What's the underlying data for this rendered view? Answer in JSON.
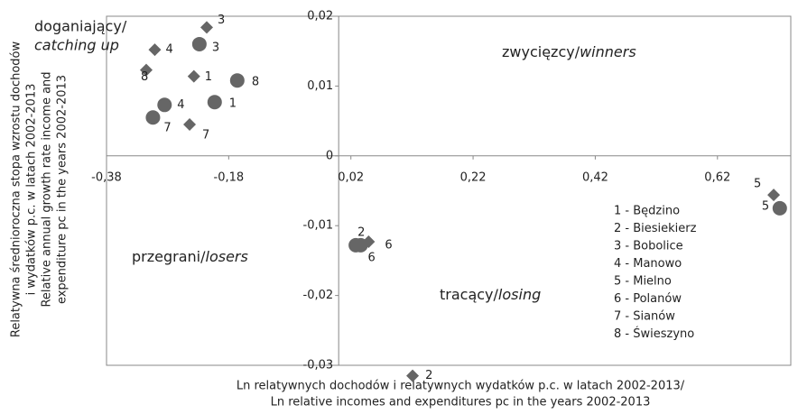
{
  "chart_data": {
    "type": "scatter",
    "xlim": [
      -0.38,
      0.74
    ],
    "ylim": [
      -0.03,
      0.02
    ],
    "xticks": [
      {
        "value": -0.38,
        "label": "-0,38"
      },
      {
        "value": -0.18,
        "label": "-0,18"
      },
      {
        "value": 0.02,
        "label": "0,02"
      },
      {
        "value": 0.22,
        "label": "0,22"
      },
      {
        "value": 0.42,
        "label": "0,42"
      },
      {
        "value": 0.62,
        "label": "0,62"
      }
    ],
    "yticks": [
      {
        "value": 0.02,
        "label": "0,02"
      },
      {
        "value": 0.01,
        "label": "0,01"
      },
      0,
      {
        "value": -0.01,
        "label": "-0,01"
      },
      {
        "value": -0.02,
        "label": "-0,02"
      },
      {
        "value": -0.03,
        "label": "-0,03"
      }
    ],
    "x_label": [
      "Ln relatywnych dochodów i relatywnych wydatków p.c. w latach 2002-2013/",
      "Ln relative incomes and expenditures pc in the years 2002-2013"
    ],
    "y_label": [
      "Relatywna średnioroczna stopa wzrostu dochodów",
      "i wydatków p.c. w latach 2002-2013",
      "Relative annual growth rate income and",
      "expenditure pc in the years 2002-2013"
    ],
    "series": [
      {
        "marker": "diamond",
        "color": "#666666",
        "labels": [
          "1",
          "2",
          "3",
          "4",
          "5",
          "6",
          "7",
          "8"
        ],
        "x": [
          -0.237,
          0.121,
          -0.216,
          -0.301,
          0.712,
          0.049,
          -0.244,
          -0.315
        ],
        "values": [
          0.0114,
          -0.0315,
          0.0184,
          0.0152,
          -0.0056,
          -0.0123,
          0.0045,
          0.0123
        ]
      },
      {
        "marker": "circle",
        "color": "#666666",
        "labels": [
          "1",
          "2",
          "3",
          "4",
          "5",
          "6",
          "7",
          "8"
        ],
        "x": [
          -0.203,
          0.028,
          -0.228,
          -0.285,
          0.722,
          0.036,
          -0.304,
          -0.166
        ],
        "values": [
          0.0077,
          -0.0128,
          0.016,
          0.0073,
          -0.0075,
          -0.0128,
          0.0055,
          0.0108
        ]
      }
    ],
    "quadrants": [
      {
        "label": "doganiający/",
        "label_en": "catching up"
      },
      {
        "label": "zwycięzcy/",
        "label_en": "winners"
      },
      {
        "label": "przegrani/",
        "label_en": "losers"
      },
      {
        "label": "tracący/",
        "label_en": "losing"
      }
    ],
    "key": [
      "1 - Będzino",
      "2 - Biesiekierz",
      "3 - Bobolice",
      "4 - Manowo",
      "5 - Mielno",
      "6 - Polanów",
      "7 - Sianów",
      "8 - Świeszyno"
    ]
  }
}
